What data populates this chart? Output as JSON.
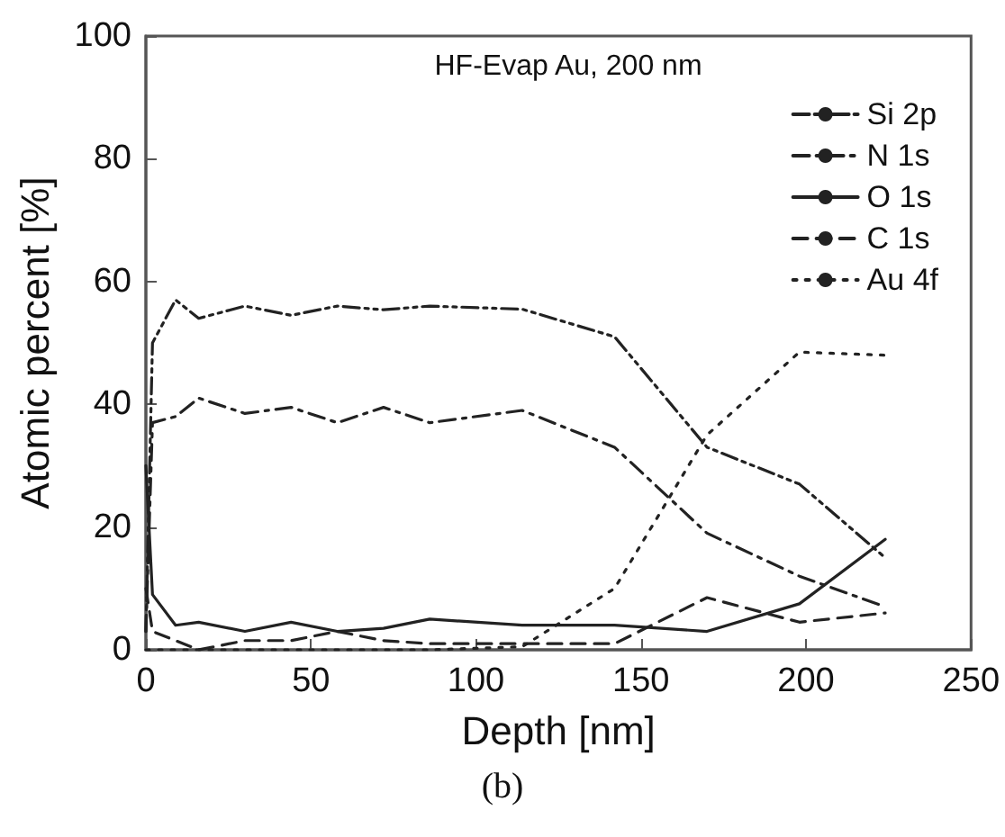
{
  "chart_data": {
    "type": "line",
    "title": "HF-Evap Au, 200 nm",
    "xlabel": "Depth [nm]",
    "ylabel": "Atomic percent [%]",
    "annotations": [
      "(b)"
    ],
    "x": [
      0,
      2,
      9,
      16,
      30,
      44,
      58,
      72,
      86,
      114,
      142,
      170,
      198,
      224
    ],
    "series": [
      {
        "name": "Si 2p",
        "color": "#222222",
        "line_style": "dashdotdot",
        "values": [
          3,
          50,
          57,
          54,
          56,
          54.5,
          56,
          55.4,
          56,
          55.5,
          51,
          33,
          27,
          15
        ]
      },
      {
        "name": "N 1s",
        "color": "#222222",
        "line_style": "dashdot",
        "values": [
          3,
          37,
          38,
          41,
          38.5,
          39.5,
          37,
          39.5,
          37,
          39,
          33,
          19,
          12,
          7
        ]
      },
      {
        "name": "O 1s",
        "color": "#222222",
        "line_style": "solid",
        "values": [
          30,
          9,
          4,
          4.5,
          3,
          4.5,
          3,
          3.5,
          5,
          4,
          4,
          3,
          7.5,
          18
        ]
      },
      {
        "name": "C 1s",
        "color": "#222222",
        "line_style": "dashed",
        "values": [
          10,
          3,
          1.5,
          0,
          1.5,
          1.5,
          3,
          1.5,
          1,
          1,
          1,
          8.5,
          4.5,
          6
        ]
      },
      {
        "name": "Au 4f",
        "color": "#222222",
        "line_style": "dotted",
        "values": [
          0,
          0,
          0,
          0,
          0,
          0,
          0,
          0,
          0,
          0.5,
          10,
          35,
          48.5,
          48
        ]
      }
    ],
    "xlim": [
      0,
      250
    ],
    "xticks": [
      0,
      50,
      100,
      150,
      200,
      250
    ],
    "ylim": [
      0,
      100
    ],
    "yticks": [
      0,
      20,
      40,
      60,
      80,
      100
    ],
    "grid": false,
    "legend": "top right",
    "marker": "none"
  }
}
